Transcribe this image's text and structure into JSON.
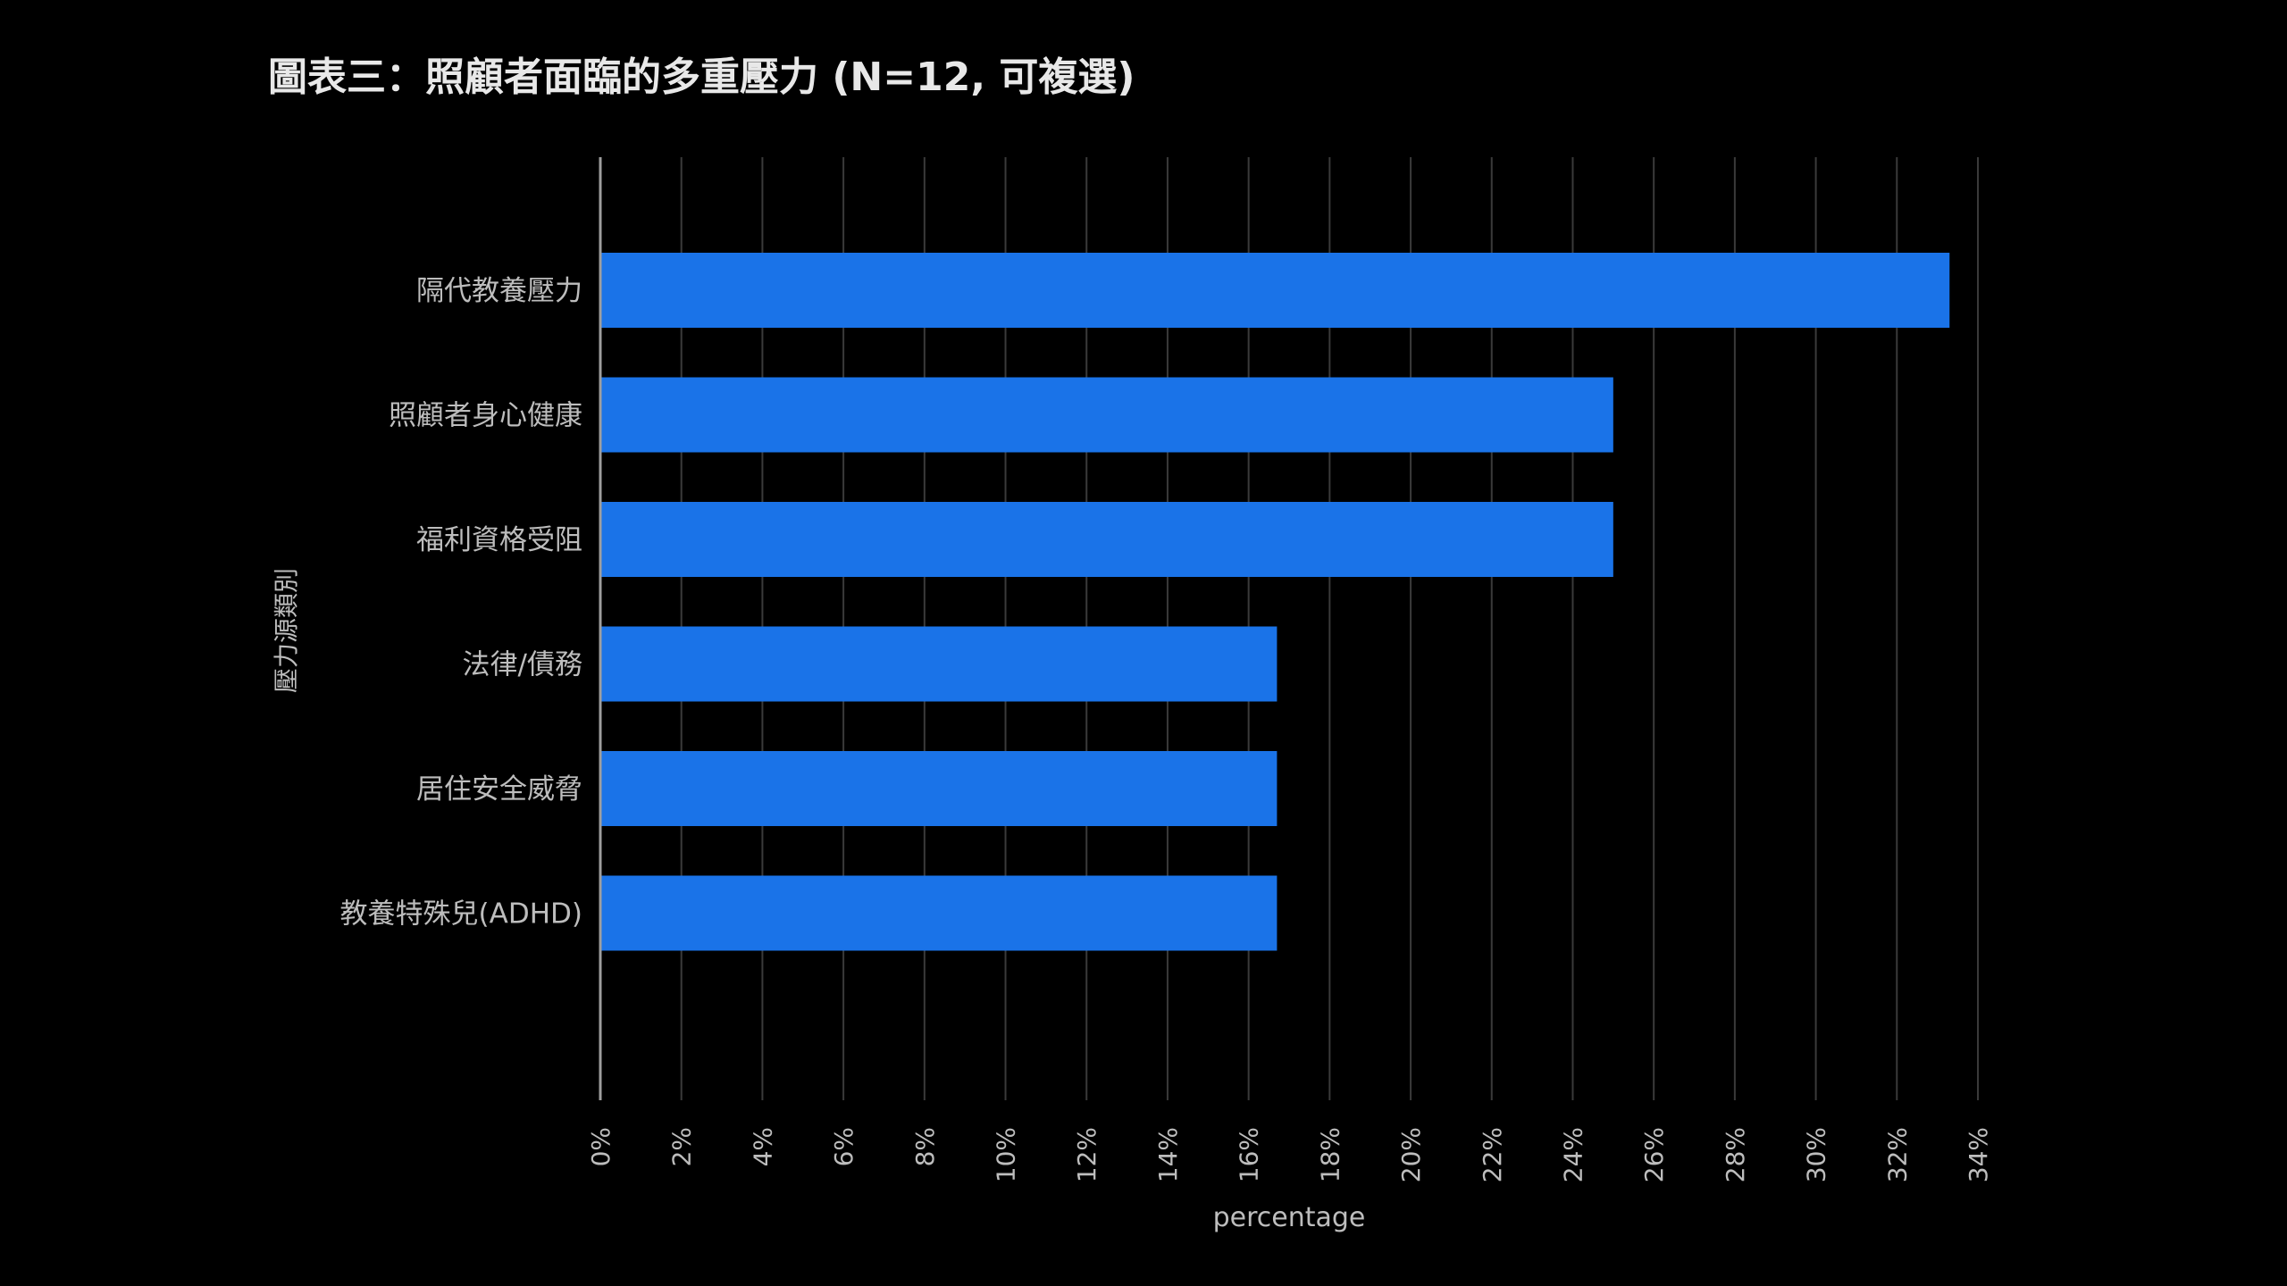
{
  "chart_data": {
    "type": "bar",
    "orientation": "horizontal",
    "title": "圖表三：照顧者面臨的多重壓力 (N=12, 可複選)",
    "xlabel": "percentage",
    "ylabel": "壓力源類別",
    "categories": [
      "隔代教養壓力",
      "照顧者身心健康",
      "福利資格受阻",
      "法律/債務",
      "居住安全威脅",
      "教養特殊兒(ADHD)"
    ],
    "values": [
      33.3,
      25.0,
      25.0,
      16.7,
      16.7,
      16.7
    ],
    "xlim": [
      0,
      34
    ],
    "x_ticks": [
      0,
      2,
      4,
      6,
      8,
      10,
      12,
      14,
      16,
      18,
      20,
      22,
      24,
      26,
      28,
      30,
      32,
      34
    ],
    "tick_suffix": "%",
    "grid": true,
    "legend": "none",
    "colors": {
      "bar": "#1a73e8",
      "background": "#000000",
      "grid": "#3a3a3a",
      "text": "#bdbdbd",
      "title": "#e8e8e8"
    }
  }
}
